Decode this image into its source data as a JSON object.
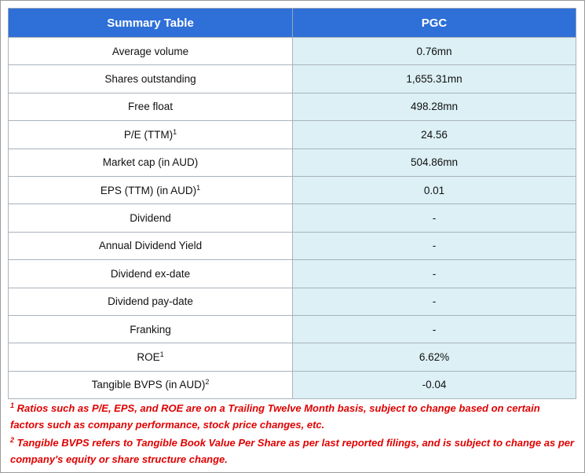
{
  "table": {
    "header": [
      "Summary Table",
      "PGC"
    ],
    "rows": [
      {
        "label": "Average volume",
        "value": "0.76mn"
      },
      {
        "label": "Shares outstanding",
        "value": "1,655.31mn"
      },
      {
        "label": "Free float",
        "value": "498.28mn"
      },
      {
        "label": "P/E (TTM)",
        "sup": "1",
        "value": "24.56"
      },
      {
        "label": "Market cap (in AUD)",
        "value": "504.86mn"
      },
      {
        "label": "EPS (TTM) (in AUD)",
        "sup": "1",
        "value": "0.01"
      },
      {
        "label": "Dividend",
        "value": "-"
      },
      {
        "label": "Annual Dividend Yield",
        "value": "-"
      },
      {
        "label": "Dividend ex-date",
        "value": "-"
      },
      {
        "label": "Dividend pay-date",
        "value": "-"
      },
      {
        "label": "Franking",
        "value": "-"
      },
      {
        "label": "ROE",
        "sup": "1",
        "value": "6.62%"
      },
      {
        "label": "Tangible BVPS (in AUD)",
        "sup": "2",
        "value": "-0.04"
      }
    ]
  },
  "footnotes": [
    {
      "mark": "1",
      "text": "Ratios such as P/E, EPS, and ROE are on a Trailing Twelve Month basis, subject to change based on certain factors such as company performance, stock price changes, etc."
    },
    {
      "mark": "2",
      "text": "Tangible BVPS refers to Tangible Book Value Per Share as per last reported filings, and is subject to change as per company's equity or share structure change."
    }
  ]
}
